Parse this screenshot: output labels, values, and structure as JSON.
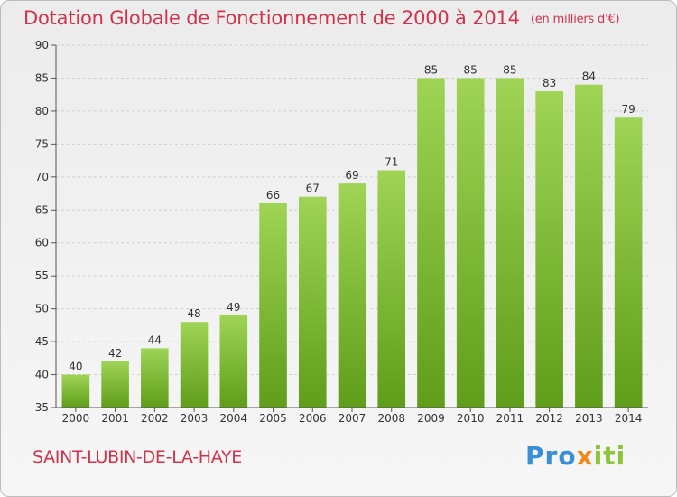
{
  "chart_data": {
    "type": "bar",
    "title": "Dotation Globale de Fonctionnement de 2000 à 2014",
    "subtitle": "(en milliers d'€)",
    "categories": [
      "2000",
      "2001",
      "2002",
      "2003",
      "2004",
      "2005",
      "2006",
      "2007",
      "2008",
      "2009",
      "2010",
      "2011",
      "2012",
      "2013",
      "2014"
    ],
    "values": [
      40,
      42,
      44,
      48,
      49,
      66,
      67,
      69,
      71,
      85,
      85,
      85,
      83,
      84,
      79
    ],
    "xlabel": "",
    "ylabel": "",
    "ylim": [
      35,
      90
    ],
    "yticks": [
      35,
      40,
      45,
      50,
      55,
      60,
      65,
      70,
      75,
      80,
      85,
      90
    ],
    "grid": true,
    "data_labels": true
  },
  "footer": {
    "commune": "SAINT-LUBIN-DE-LA-HAYE",
    "brand": {
      "part1": "Pro",
      "part2": "x",
      "part3": "iti"
    }
  },
  "colors": {
    "title": "#d2334a",
    "bar_top": "#9fd456",
    "bar_bottom": "#5f9d1a",
    "axis": "#555555"
  }
}
